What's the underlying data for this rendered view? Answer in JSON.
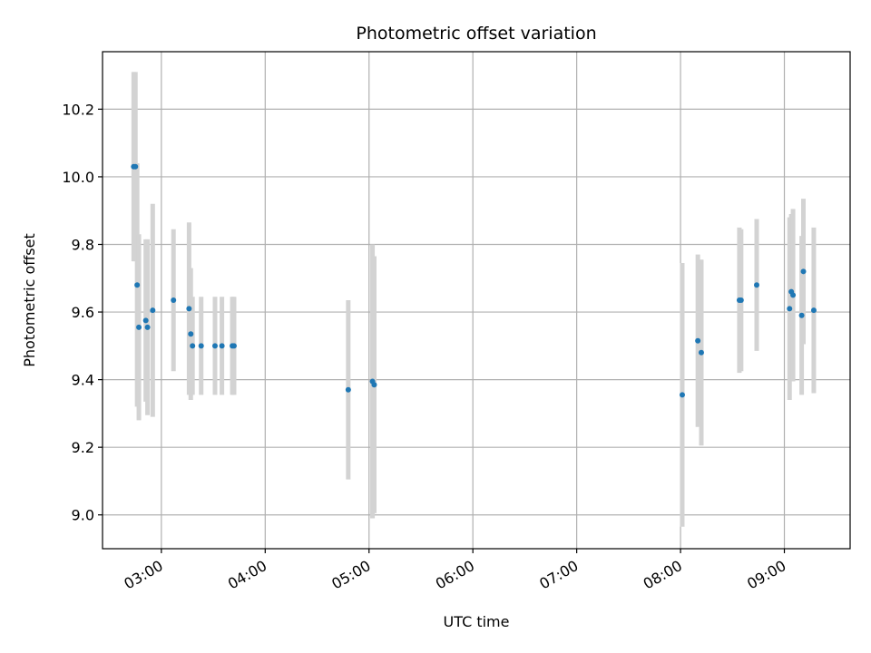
{
  "chart_data": {
    "type": "scatter",
    "title": "Photometric offset variation",
    "xlabel": "UTC time",
    "ylabel": "Photometric offset",
    "x_axis_kind": "time",
    "xlim": [
      "02:26",
      "09:38"
    ],
    "ylim": [
      8.9,
      10.37
    ],
    "x_ticks": [
      "03:00",
      "04:00",
      "05:00",
      "06:00",
      "07:00",
      "08:00",
      "09:00"
    ],
    "y_ticks": [
      "9.0",
      "9.2",
      "9.4",
      "9.6",
      "9.8",
      "10.0",
      "10.2"
    ],
    "grid": true,
    "marker_color": "#1f77b4",
    "errorbar_color": "#d3d3d3",
    "points": [
      {
        "time": "02:44",
        "y": 10.03,
        "yerr": 0.28
      },
      {
        "time": "02:45",
        "y": 10.03,
        "yerr": 0.28
      },
      {
        "time": "02:46",
        "y": 9.68,
        "yerr": 0.36
      },
      {
        "time": "02:47",
        "y": 9.555,
        "yerr": 0.275
      },
      {
        "time": "02:51",
        "y": 9.575,
        "yerr": 0.24
      },
      {
        "time": "02:52",
        "y": 9.555,
        "yerr": 0.26
      },
      {
        "time": "02:55",
        "y": 9.605,
        "yerr": 0.315
      },
      {
        "time": "03:07",
        "y": 9.635,
        "yerr": 0.21
      },
      {
        "time": "03:16",
        "y": 9.61,
        "yerr": 0.255
      },
      {
        "time": "03:17",
        "y": 9.535,
        "yerr": 0.195
      },
      {
        "time": "03:18",
        "y": 9.5,
        "yerr": 0.145
      },
      {
        "time": "03:23",
        "y": 9.5,
        "yerr": 0.145
      },
      {
        "time": "03:31",
        "y": 9.5,
        "yerr": 0.145
      },
      {
        "time": "03:35",
        "y": 9.5,
        "yerr": 0.145
      },
      {
        "time": "03:41",
        "y": 9.5,
        "yerr": 0.145
      },
      {
        "time": "03:42",
        "y": 9.5,
        "yerr": 0.145
      },
      {
        "time": "04:48",
        "y": 9.37,
        "yerr": 0.265
      },
      {
        "time": "05:02",
        "y": 9.395,
        "yerr": 0.405
      },
      {
        "time": "05:03",
        "y": 9.385,
        "yerr": 0.38
      },
      {
        "time": "08:01",
        "y": 9.355,
        "yerr": 0.39
      },
      {
        "time": "08:10",
        "y": 9.515,
        "yerr": 0.255
      },
      {
        "time": "08:12",
        "y": 9.48,
        "yerr": 0.275
      },
      {
        "time": "08:34",
        "y": 9.635,
        "yerr": 0.215
      },
      {
        "time": "08:35",
        "y": 9.635,
        "yerr": 0.21
      },
      {
        "time": "08:44",
        "y": 9.68,
        "yerr": 0.195
      },
      {
        "time": "09:03",
        "y": 9.61,
        "yerr": 0.27
      },
      {
        "time": "09:04",
        "y": 9.66,
        "yerr": 0.23
      },
      {
        "time": "09:05",
        "y": 9.65,
        "yerr": 0.255
      },
      {
        "time": "09:10",
        "y": 9.59,
        "yerr": 0.235
      },
      {
        "time": "09:11",
        "y": 9.72,
        "yerr": 0.215
      },
      {
        "time": "09:17",
        "y": 9.605,
        "yerr": 0.245
      }
    ]
  }
}
